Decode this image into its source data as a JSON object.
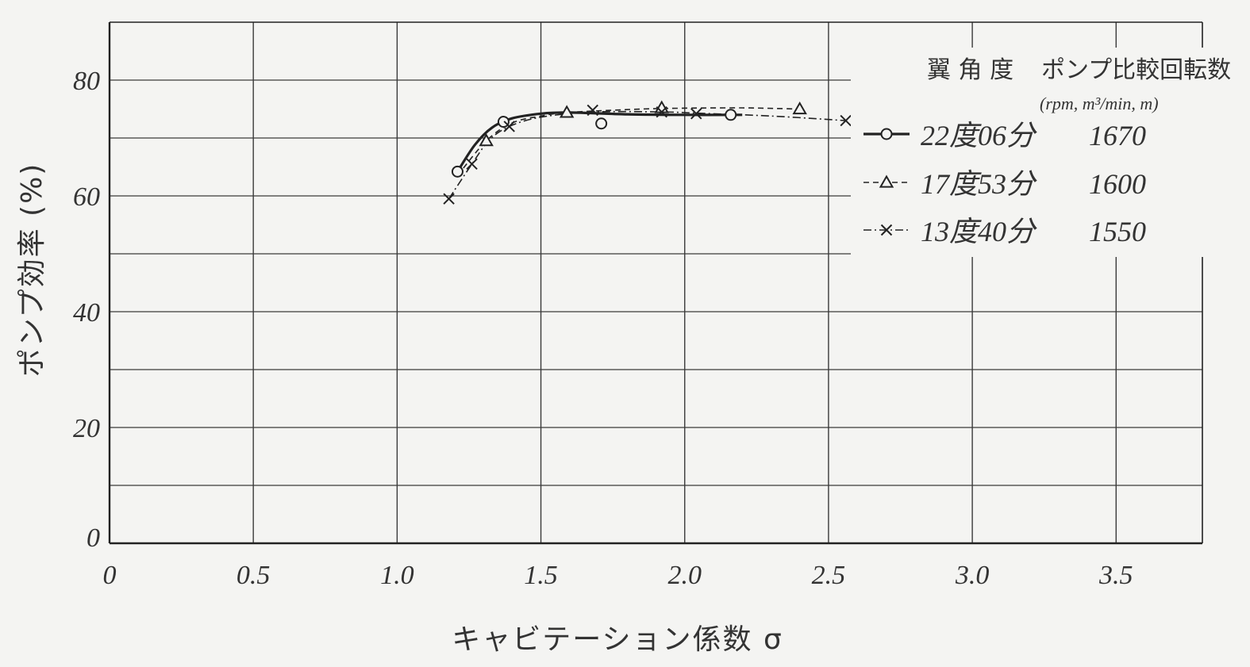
{
  "chart_data": {
    "type": "line",
    "xlabel": "キャビテーション係数 σ",
    "ylabel": "ポンプ効率 (%)",
    "xlim": [
      0,
      3.8
    ],
    "ylim": [
      0,
      90
    ],
    "x_ticks": [
      "0",
      "0.5",
      "1.0",
      "1.5",
      "2.0",
      "2.5",
      "3.0",
      "3.5"
    ],
    "y_ticks": [
      "0",
      "20",
      "40",
      "60",
      "80"
    ],
    "grid": true,
    "legend_position": "top-right",
    "legend_header": {
      "angle": "翼 角 度",
      "speed": "ポンプ比較回転数",
      "units": "(rpm, m³/min, m)"
    },
    "series": [
      {
        "name": "22度06分",
        "speed": "1670",
        "marker": "circle",
        "line": "solid",
        "points": [
          [
            1.21,
            64.2
          ],
          [
            1.37,
            72.8
          ],
          [
            1.71,
            72.5
          ],
          [
            2.16,
            74.0
          ]
        ],
        "curve": [
          [
            1.21,
            64.2
          ],
          [
            1.27,
            68.8
          ],
          [
            1.33,
            71.8
          ],
          [
            1.4,
            73.4
          ],
          [
            1.5,
            74.2
          ],
          [
            1.6,
            74.4
          ],
          [
            1.8,
            74.1
          ],
          [
            2.0,
            74.0
          ],
          [
            2.2,
            74.0
          ]
        ]
      },
      {
        "name": "17度53分",
        "speed": "1600",
        "marker": "triangle",
        "line": "dashed",
        "points": [
          [
            1.31,
            69.5
          ],
          [
            1.59,
            74.4
          ],
          [
            1.92,
            75.2
          ],
          [
            2.4,
            75.0
          ]
        ],
        "curve": [
          [
            1.21,
            63.5
          ],
          [
            1.31,
            69.5
          ],
          [
            1.4,
            72.6
          ],
          [
            1.5,
            73.8
          ],
          [
            1.59,
            74.4
          ],
          [
            1.75,
            74.8
          ],
          [
            1.92,
            75.1
          ],
          [
            2.2,
            75.2
          ],
          [
            2.4,
            75.0
          ]
        ]
      },
      {
        "name": "13度40分",
        "speed": "1550",
        "marker": "cross",
        "line": "dash-dot",
        "points": [
          [
            1.18,
            59.5
          ],
          [
            1.26,
            65.5
          ],
          [
            1.39,
            72.0
          ],
          [
            1.68,
            74.8
          ],
          [
            1.92,
            74.5
          ],
          [
            2.04,
            74.2
          ],
          [
            2.56,
            73.0
          ]
        ],
        "curve": [
          [
            1.18,
            59.5
          ],
          [
            1.26,
            65.5
          ],
          [
            1.32,
            69.6
          ],
          [
            1.39,
            72.0
          ],
          [
            1.5,
            73.6
          ],
          [
            1.68,
            74.5
          ],
          [
            1.92,
            74.5
          ],
          [
            2.04,
            74.3
          ],
          [
            2.3,
            73.8
          ],
          [
            2.56,
            73.0
          ]
        ]
      }
    ]
  }
}
